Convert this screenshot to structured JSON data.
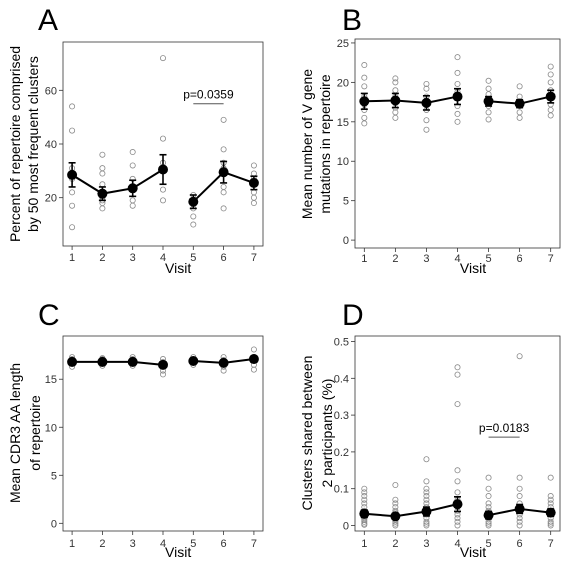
{
  "chart_data": [
    {
      "panel": "A",
      "type": "scatter",
      "xlabel": "Visit",
      "ylabel": [
        "Percent of repertoire comprised",
        "by 50 most frequent clusters"
      ],
      "x_ticks": [
        1,
        2,
        3,
        4,
        5,
        6,
        7
      ],
      "y_ticks": [
        20,
        40,
        60
      ],
      "ylim": [
        2,
        78
      ],
      "groups": [
        [
          1,
          2,
          3,
          4
        ],
        [
          5,
          6,
          7
        ]
      ],
      "mean": [
        {
          "x": 1,
          "y": 28.5,
          "err": 4.5
        },
        {
          "x": 2,
          "y": 21.5,
          "err": 2.5
        },
        {
          "x": 3,
          "y": 23.5,
          "err": 3.0
        },
        {
          "x": 4,
          "y": 30.5,
          "err": 5.5
        },
        {
          "x": 5,
          "y": 18.5,
          "err": 2.5
        },
        {
          "x": 6,
          "y": 29.5,
          "err": 4.0
        },
        {
          "x": 7,
          "y": 25.5,
          "err": 2.5
        }
      ],
      "points": [
        [
          1,
          9
        ],
        [
          1,
          17
        ],
        [
          1,
          22
        ],
        [
          1,
          27
        ],
        [
          1,
          31
        ],
        [
          1,
          45
        ],
        [
          1,
          54
        ],
        [
          2,
          16
        ],
        [
          2,
          18
        ],
        [
          2,
          19
        ],
        [
          2,
          20
        ],
        [
          2,
          22
        ],
        [
          2,
          25
        ],
        [
          2,
          29
        ],
        [
          2,
          31
        ],
        [
          2,
          36
        ],
        [
          3,
          17
        ],
        [
          3,
          19
        ],
        [
          3,
          23
        ],
        [
          3,
          27
        ],
        [
          3,
          32
        ],
        [
          3,
          37
        ],
        [
          4,
          19
        ],
        [
          4,
          23
        ],
        [
          4,
          33
        ],
        [
          4,
          42
        ],
        [
          4,
          72
        ],
        [
          5,
          10
        ],
        [
          5,
          13
        ],
        [
          5,
          16
        ],
        [
          5,
          19
        ],
        [
          5,
          21
        ],
        [
          6,
          16
        ],
        [
          6,
          22
        ],
        [
          6,
          24
        ],
        [
          6,
          31
        ],
        [
          6,
          33
        ],
        [
          6,
          38
        ],
        [
          6,
          49
        ],
        [
          7,
          18
        ],
        [
          7,
          20
        ],
        [
          7,
          22
        ],
        [
          7,
          27
        ],
        [
          7,
          29
        ],
        [
          7,
          32
        ]
      ],
      "annotation": {
        "text": "p=0.0359",
        "x1": 5,
        "x2": 6,
        "y": 55
      }
    },
    {
      "panel": "B",
      "type": "scatter",
      "xlabel": "Visit",
      "ylabel": [
        "Mean number of V gene",
        "mutations in repertoire"
      ],
      "x_ticks": [
        1,
        2,
        3,
        4,
        5,
        6,
        7
      ],
      "y_ticks": [
        0,
        5,
        10,
        15,
        20,
        25
      ],
      "ylim": [
        -1,
        25.5
      ],
      "groups": [
        [
          1,
          2,
          3,
          4
        ],
        [
          5,
          6,
          7
        ]
      ],
      "mean": [
        {
          "x": 1,
          "y": 17.6,
          "err": 1.0
        },
        {
          "x": 2,
          "y": 17.7,
          "err": 0.9
        },
        {
          "x": 3,
          "y": 17.4,
          "err": 0.9
        },
        {
          "x": 4,
          "y": 18.2,
          "err": 1.0
        },
        {
          "x": 5,
          "y": 17.6,
          "err": 0.6
        },
        {
          "x": 6,
          "y": 17.3,
          "err": 0.5
        },
        {
          "x": 7,
          "y": 18.2,
          "err": 0.8
        }
      ],
      "points": [
        [
          1,
          14.8
        ],
        [
          1,
          15.5
        ],
        [
          1,
          16.5
        ],
        [
          1,
          17.2
        ],
        [
          1,
          18.2
        ],
        [
          1,
          19.5
        ],
        [
          1,
          20.6
        ],
        [
          1,
          22.2
        ],
        [
          2,
          15.5
        ],
        [
          2,
          16.2
        ],
        [
          2,
          16.8
        ],
        [
          2,
          17.5
        ],
        [
          2,
          18.2
        ],
        [
          2,
          19.0
        ],
        [
          2,
          20.0
        ],
        [
          2,
          20.5
        ],
        [
          3,
          14.0
        ],
        [
          3,
          15.2
        ],
        [
          3,
          16.5
        ],
        [
          3,
          17.4
        ],
        [
          3,
          18.2
        ],
        [
          3,
          19.2
        ],
        [
          3,
          19.8
        ],
        [
          4,
          15.0
        ],
        [
          4,
          16.0
        ],
        [
          4,
          17.0
        ],
        [
          4,
          18.0
        ],
        [
          4,
          18.8
        ],
        [
          4,
          19.8
        ],
        [
          4,
          21.2
        ],
        [
          4,
          23.2
        ],
        [
          5,
          15.3
        ],
        [
          5,
          16.2
        ],
        [
          5,
          17.0
        ],
        [
          5,
          17.8
        ],
        [
          5,
          18.5
        ],
        [
          5,
          19.2
        ],
        [
          5,
          20.2
        ],
        [
          6,
          15.5
        ],
        [
          6,
          16.2
        ],
        [
          6,
          17.0
        ],
        [
          6,
          17.5
        ],
        [
          6,
          18.2
        ],
        [
          6,
          19.5
        ],
        [
          7,
          15.8
        ],
        [
          7,
          16.5
        ],
        [
          7,
          17.2
        ],
        [
          7,
          18.0
        ],
        [
          7,
          19.0
        ],
        [
          7,
          20.0
        ],
        [
          7,
          21.0
        ],
        [
          7,
          22.0
        ]
      ]
    },
    {
      "panel": "C",
      "type": "scatter",
      "xlabel": "Visit",
      "ylabel": [
        "Mean CDR3 AA length",
        "of repertoire"
      ],
      "x_ticks": [
        1,
        2,
        3,
        4,
        5,
        6,
        7
      ],
      "y_ticks": [
        0,
        5,
        10,
        15
      ],
      "ylim": [
        -0.8,
        19.5
      ],
      "groups": [
        [
          1,
          2,
          3,
          4
        ],
        [
          5,
          6,
          7
        ]
      ],
      "mean": [
        {
          "x": 1,
          "y": 16.8,
          "err": 0.2
        },
        {
          "x": 2,
          "y": 16.8,
          "err": 0.2
        },
        {
          "x": 3,
          "y": 16.8,
          "err": 0.2
        },
        {
          "x": 4,
          "y": 16.5,
          "err": 0.3
        },
        {
          "x": 5,
          "y": 16.9,
          "err": 0.2
        },
        {
          "x": 6,
          "y": 16.7,
          "err": 0.2
        },
        {
          "x": 7,
          "y": 17.1,
          "err": 0.3
        }
      ],
      "points": [
        [
          1,
          16.3
        ],
        [
          1,
          16.6
        ],
        [
          1,
          16.9
        ],
        [
          1,
          17.1
        ],
        [
          1,
          17.3
        ],
        [
          2,
          16.4
        ],
        [
          2,
          16.6
        ],
        [
          2,
          16.9
        ],
        [
          2,
          17.1
        ],
        [
          2,
          17.2
        ],
        [
          3,
          16.4
        ],
        [
          3,
          16.6
        ],
        [
          3,
          16.9
        ],
        [
          3,
          17.1
        ],
        [
          3,
          17.3
        ],
        [
          4,
          15.5
        ],
        [
          4,
          15.9
        ],
        [
          4,
          16.4
        ],
        [
          4,
          16.8
        ],
        [
          4,
          17.1
        ],
        [
          5,
          16.5
        ],
        [
          5,
          16.8
        ],
        [
          5,
          17.0
        ],
        [
          5,
          17.3
        ],
        [
          6,
          15.9
        ],
        [
          6,
          16.3
        ],
        [
          6,
          16.7
        ],
        [
          6,
          17.0
        ],
        [
          6,
          17.3
        ],
        [
          7,
          16.0
        ],
        [
          7,
          16.5
        ],
        [
          7,
          17.3
        ],
        [
          7,
          18.1
        ]
      ]
    },
    {
      "panel": "D",
      "type": "scatter",
      "xlabel": "Visit",
      "ylabel": [
        "Clusters shared between",
        "2 participants (%)"
      ],
      "x_ticks": [
        1,
        2,
        3,
        4,
        5,
        6,
        7
      ],
      "y_ticks": [
        0.0,
        0.1,
        0.2,
        0.3,
        0.4,
        0.5
      ],
      "ylim": [
        -0.015,
        0.515
      ],
      "groups": [
        [
          1,
          2,
          3,
          4
        ],
        [
          5,
          6,
          7
        ]
      ],
      "mean": [
        {
          "x": 1,
          "y": 0.032,
          "err": 0.01
        },
        {
          "x": 2,
          "y": 0.025,
          "err": 0.008
        },
        {
          "x": 3,
          "y": 0.038,
          "err": 0.012
        },
        {
          "x": 4,
          "y": 0.058,
          "err": 0.02
        },
        {
          "x": 5,
          "y": 0.028,
          "err": 0.01
        },
        {
          "x": 6,
          "y": 0.045,
          "err": 0.012
        },
        {
          "x": 7,
          "y": 0.035,
          "err": 0.01
        }
      ],
      "points": [
        [
          1,
          0.002
        ],
        [
          1,
          0.005
        ],
        [
          1,
          0.01
        ],
        [
          1,
          0.015
        ],
        [
          1,
          0.02
        ],
        [
          1,
          0.025
        ],
        [
          1,
          0.03
        ],
        [
          1,
          0.035
        ],
        [
          1,
          0.04
        ],
        [
          1,
          0.05
        ],
        [
          1,
          0.06
        ],
        [
          1,
          0.07
        ],
        [
          1,
          0.08
        ],
        [
          1,
          0.09
        ],
        [
          1,
          0.1
        ],
        [
          2,
          0.0
        ],
        [
          2,
          0.005
        ],
        [
          2,
          0.01
        ],
        [
          2,
          0.015
        ],
        [
          2,
          0.02
        ],
        [
          2,
          0.025
        ],
        [
          2,
          0.03
        ],
        [
          2,
          0.035
        ],
        [
          2,
          0.04
        ],
        [
          2,
          0.05
        ],
        [
          2,
          0.06
        ],
        [
          2,
          0.07
        ],
        [
          2,
          0.11
        ],
        [
          3,
          0.0
        ],
        [
          3,
          0.005
        ],
        [
          3,
          0.01
        ],
        [
          3,
          0.02
        ],
        [
          3,
          0.03
        ],
        [
          3,
          0.04
        ],
        [
          3,
          0.05
        ],
        [
          3,
          0.06
        ],
        [
          3,
          0.07
        ],
        [
          3,
          0.08
        ],
        [
          3,
          0.09
        ],
        [
          3,
          0.1
        ],
        [
          3,
          0.12
        ],
        [
          3,
          0.18
        ],
        [
          4,
          0.0
        ],
        [
          4,
          0.01
        ],
        [
          4,
          0.02
        ],
        [
          4,
          0.03
        ],
        [
          4,
          0.04
        ],
        [
          4,
          0.05
        ],
        [
          4,
          0.06
        ],
        [
          4,
          0.07
        ],
        [
          4,
          0.09
        ],
        [
          4,
          0.12
        ],
        [
          4,
          0.15
        ],
        [
          4,
          0.33
        ],
        [
          4,
          0.41
        ],
        [
          4,
          0.43
        ],
        [
          5,
          0.0
        ],
        [
          5,
          0.005
        ],
        [
          5,
          0.01
        ],
        [
          5,
          0.02
        ],
        [
          5,
          0.03
        ],
        [
          5,
          0.04
        ],
        [
          5,
          0.05
        ],
        [
          5,
          0.06
        ],
        [
          5,
          0.08
        ],
        [
          5,
          0.1
        ],
        [
          5,
          0.13
        ],
        [
          6,
          0.0
        ],
        [
          6,
          0.01
        ],
        [
          6,
          0.02
        ],
        [
          6,
          0.03
        ],
        [
          6,
          0.04
        ],
        [
          6,
          0.05
        ],
        [
          6,
          0.06
        ],
        [
          6,
          0.08
        ],
        [
          6,
          0.1
        ],
        [
          6,
          0.13
        ],
        [
          6,
          0.46
        ],
        [
          7,
          0.0
        ],
        [
          7,
          0.005
        ],
        [
          7,
          0.01
        ],
        [
          7,
          0.02
        ],
        [
          7,
          0.03
        ],
        [
          7,
          0.04
        ],
        [
          7,
          0.05
        ],
        [
          7,
          0.06
        ],
        [
          7,
          0.07
        ],
        [
          7,
          0.08
        ],
        [
          7,
          0.13
        ]
      ],
      "annotation": {
        "text": "p=0.0183",
        "x1": 5,
        "x2": 6,
        "y": 0.24
      }
    }
  ]
}
